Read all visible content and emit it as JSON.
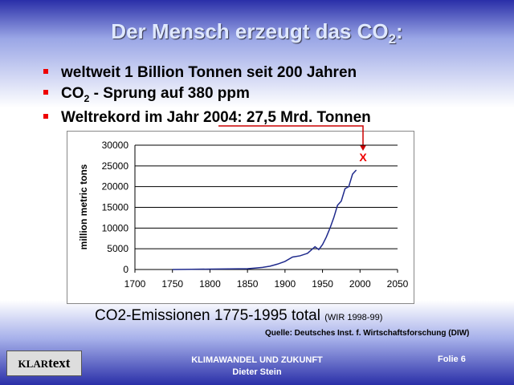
{
  "slide": {
    "title": {
      "main": "Der Mensch erzeugt das CO",
      "sub": "2",
      "end": ":"
    },
    "bullets": [
      {
        "text": "weltweit 1 Billion Tonnen seit 200 Jahren"
      },
      {
        "pre": "CO",
        "sub": "2",
        "post": " - Sprung auf 380 ppm"
      },
      {
        "text": "Weltrekord im Jahr 2004: 27,5 Mrd. Tonnen"
      }
    ],
    "caption": "CO2-Emissionen 1775-1995 total",
    "caption_note": "(WIR 1998-99)",
    "source": "Quelle: Deutsches Inst. f. Wirtschaftsforschung (DIW)",
    "footer": {
      "line1": "KLIMAWANDEL UND ZUKUNFT",
      "line2": "Dieter Stein",
      "slide": "Folie 6",
      "logo_a": "KLAR",
      "logo_b": "text"
    }
  },
  "chart_data": {
    "type": "line",
    "y_label": "million metric tons",
    "annotation": "X",
    "x": [
      1750,
      1775,
      1800,
      1825,
      1850,
      1860,
      1870,
      1880,
      1890,
      1900,
      1910,
      1920,
      1930,
      1940,
      1945,
      1950,
      1955,
      1960,
      1965,
      1970,
      1975,
      1980,
      1985,
      1990,
      1995
    ],
    "series": [
      {
        "color": "#1f2a8c",
        "values": [
          10,
          50,
          100,
          150,
          200,
          350,
          500,
          800,
          1300,
          1950,
          3000,
          3300,
          3900,
          5500,
          4800,
          6000,
          7800,
          10000,
          12500,
          15500,
          16500,
          19500,
          20000,
          23000,
          24000
        ]
      }
    ],
    "xlim": [
      1700,
      2050
    ],
    "xticks": [
      1700,
      1750,
      1800,
      1850,
      1900,
      1950,
      2000,
      2050
    ],
    "ylim": [
      0,
      30000
    ],
    "yticks": [
      0,
      5000,
      10000,
      15000,
      20000,
      25000,
      30000
    ],
    "grid": true
  }
}
